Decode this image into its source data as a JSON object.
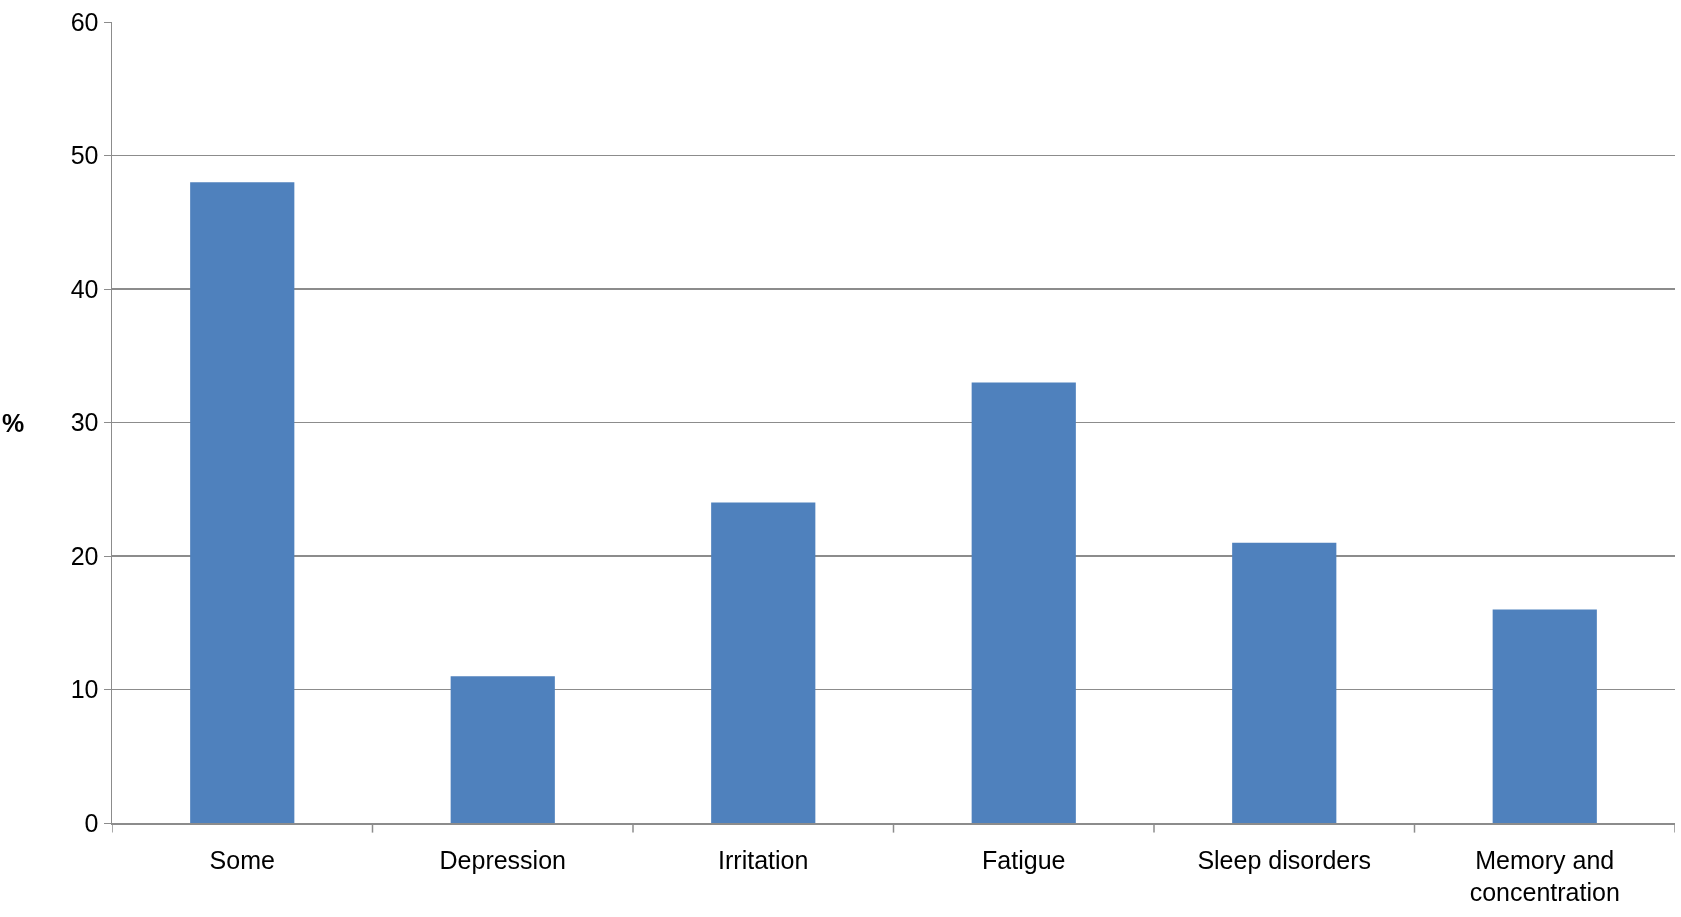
{
  "chart_data": {
    "type": "bar",
    "ylabel": "%",
    "categories": [
      "Some",
      "Depression",
      "Irritation",
      "Fatigue",
      "Sleep disorders",
      "Memory and concentration"
    ],
    "values": [
      48,
      11,
      24,
      33,
      21,
      16
    ],
    "color": "#4f81bd",
    "ylim": [
      0,
      60
    ],
    "yticks": [
      0,
      10,
      20,
      30,
      40,
      50,
      60
    ],
    "grid": "y"
  }
}
